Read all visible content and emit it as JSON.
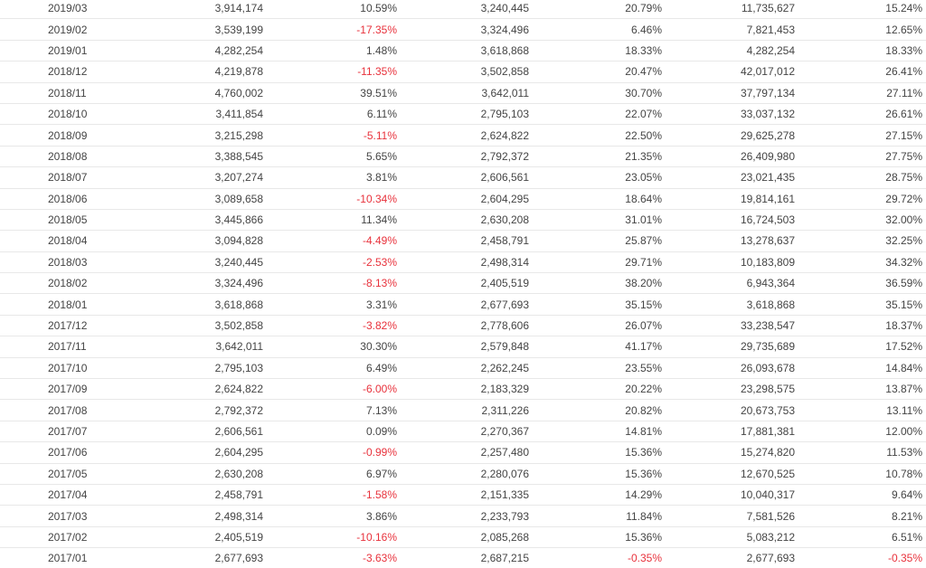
{
  "colors": {
    "text": "#444444",
    "negative": "#e8323c",
    "divider": "#e8e8e8"
  },
  "rows": [
    [
      "2019/03",
      "3,914,174",
      "10.59%",
      "3,240,445",
      "20.79%",
      "11,735,627",
      "15.24%"
    ],
    [
      "2019/02",
      "3,539,199",
      "-17.35%",
      "3,324,496",
      "6.46%",
      "7,821,453",
      "12.65%"
    ],
    [
      "2019/01",
      "4,282,254",
      "1.48%",
      "3,618,868",
      "18.33%",
      "4,282,254",
      "18.33%"
    ],
    [
      "2018/12",
      "4,219,878",
      "-11.35%",
      "3,502,858",
      "20.47%",
      "42,017,012",
      "26.41%"
    ],
    [
      "2018/11",
      "4,760,002",
      "39.51%",
      "3,642,011",
      "30.70%",
      "37,797,134",
      "27.11%"
    ],
    [
      "2018/10",
      "3,411,854",
      "6.11%",
      "2,795,103",
      "22.07%",
      "33,037,132",
      "26.61%"
    ],
    [
      "2018/09",
      "3,215,298",
      "-5.11%",
      "2,624,822",
      "22.50%",
      "29,625,278",
      "27.15%"
    ],
    [
      "2018/08",
      "3,388,545",
      "5.65%",
      "2,792,372",
      "21.35%",
      "26,409,980",
      "27.75%"
    ],
    [
      "2018/07",
      "3,207,274",
      "3.81%",
      "2,606,561",
      "23.05%",
      "23,021,435",
      "28.75%"
    ],
    [
      "2018/06",
      "3,089,658",
      "-10.34%",
      "2,604,295",
      "18.64%",
      "19,814,161",
      "29.72%"
    ],
    [
      "2018/05",
      "3,445,866",
      "11.34%",
      "2,630,208",
      "31.01%",
      "16,724,503",
      "32.00%"
    ],
    [
      "2018/04",
      "3,094,828",
      "-4.49%",
      "2,458,791",
      "25.87%",
      "13,278,637",
      "32.25%"
    ],
    [
      "2018/03",
      "3,240,445",
      "-2.53%",
      "2,498,314",
      "29.71%",
      "10,183,809",
      "34.32%"
    ],
    [
      "2018/02",
      "3,324,496",
      "-8.13%",
      "2,405,519",
      "38.20%",
      "6,943,364",
      "36.59%"
    ],
    [
      "2018/01",
      "3,618,868",
      "3.31%",
      "2,677,693",
      "35.15%",
      "3,618,868",
      "35.15%"
    ],
    [
      "2017/12",
      "3,502,858",
      "-3.82%",
      "2,778,606",
      "26.07%",
      "33,238,547",
      "18.37%"
    ],
    [
      "2017/11",
      "3,642,011",
      "30.30%",
      "2,579,848",
      "41.17%",
      "29,735,689",
      "17.52%"
    ],
    [
      "2017/10",
      "2,795,103",
      "6.49%",
      "2,262,245",
      "23.55%",
      "26,093,678",
      "14.84%"
    ],
    [
      "2017/09",
      "2,624,822",
      "-6.00%",
      "2,183,329",
      "20.22%",
      "23,298,575",
      "13.87%"
    ],
    [
      "2017/08",
      "2,792,372",
      "7.13%",
      "2,311,226",
      "20.82%",
      "20,673,753",
      "13.11%"
    ],
    [
      "2017/07",
      "2,606,561",
      "0.09%",
      "2,270,367",
      "14.81%",
      "17,881,381",
      "12.00%"
    ],
    [
      "2017/06",
      "2,604,295",
      "-0.99%",
      "2,257,480",
      "15.36%",
      "15,274,820",
      "11.53%"
    ],
    [
      "2017/05",
      "2,630,208",
      "6.97%",
      "2,280,076",
      "15.36%",
      "12,670,525",
      "10.78%"
    ],
    [
      "2017/04",
      "2,458,791",
      "-1.58%",
      "2,151,335",
      "14.29%",
      "10,040,317",
      "9.64%"
    ],
    [
      "2017/03",
      "2,498,314",
      "3.86%",
      "2,233,793",
      "11.84%",
      "7,581,526",
      "8.21%"
    ],
    [
      "2017/02",
      "2,405,519",
      "-10.16%",
      "2,085,268",
      "15.36%",
      "5,083,212",
      "6.51%"
    ],
    [
      "2017/01",
      "2,677,693",
      "-3.63%",
      "2,687,215",
      "-0.35%",
      "2,677,693",
      "-0.35%"
    ]
  ]
}
